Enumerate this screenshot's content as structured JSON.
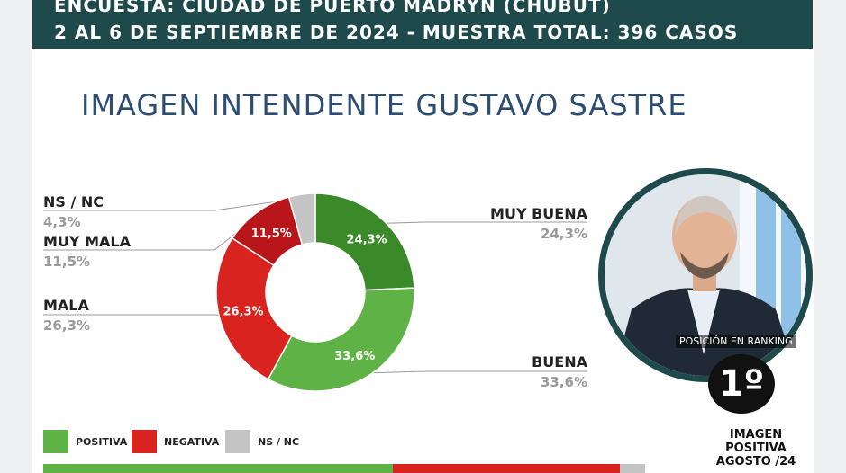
{
  "header": {
    "line1": "ENCUESTA: CIUDAD DE PUERTO MADRYN (CHUBUT)",
    "line2": "2 AL 6 DE SEPTIEMBRE DE 2024 - MUESTRA TOTAL: 396 CASOS"
  },
  "colors": {
    "header_bg": "#1f4a4c",
    "title": "#2c4e73",
    "green_dark": "#3a8a2a",
    "green_light": "#5fb346",
    "red_dark": "#b8161b",
    "red": "#d9231f",
    "gray": "#c4c4c4"
  },
  "chart_data": {
    "type": "pie",
    "title": "IMAGEN INTENDENTE  GUSTAVO SASTRE",
    "donut": true,
    "slices": [
      {
        "label": "MUY BUENA",
        "value": 24.3,
        "display": "24,3%",
        "color": "#3a8a2a"
      },
      {
        "label": "BUENA",
        "value": 33.6,
        "display": "33,6%",
        "color": "#5fb346"
      },
      {
        "label": "MALA",
        "value": 26.3,
        "display": "26,3%",
        "color": "#d9231f"
      },
      {
        "label": "MUY MALA",
        "value": 11.5,
        "display": "11,5%",
        "color": "#b8161b"
      },
      {
        "label": "NS / NC",
        "value": 4.3,
        "display": "4,3%",
        "color": "#c4c4c4"
      }
    ],
    "legend": [
      {
        "label": "POSITIVA",
        "color": "#5fb346"
      },
      {
        "label": "NEGATIVA",
        "color": "#d9231f"
      },
      {
        "label": "NS / NC",
        "color": "#c4c4c4"
      }
    ],
    "legend_position": "bottom-left"
  },
  "portrait": {
    "rank_label": "POSICIÓN EN RANKING",
    "rank_value": "1º",
    "rank_caption_1": "IMAGEN",
    "rank_caption_2": "POSITIVA",
    "rank_caption_3": "AGOSTO /24"
  }
}
